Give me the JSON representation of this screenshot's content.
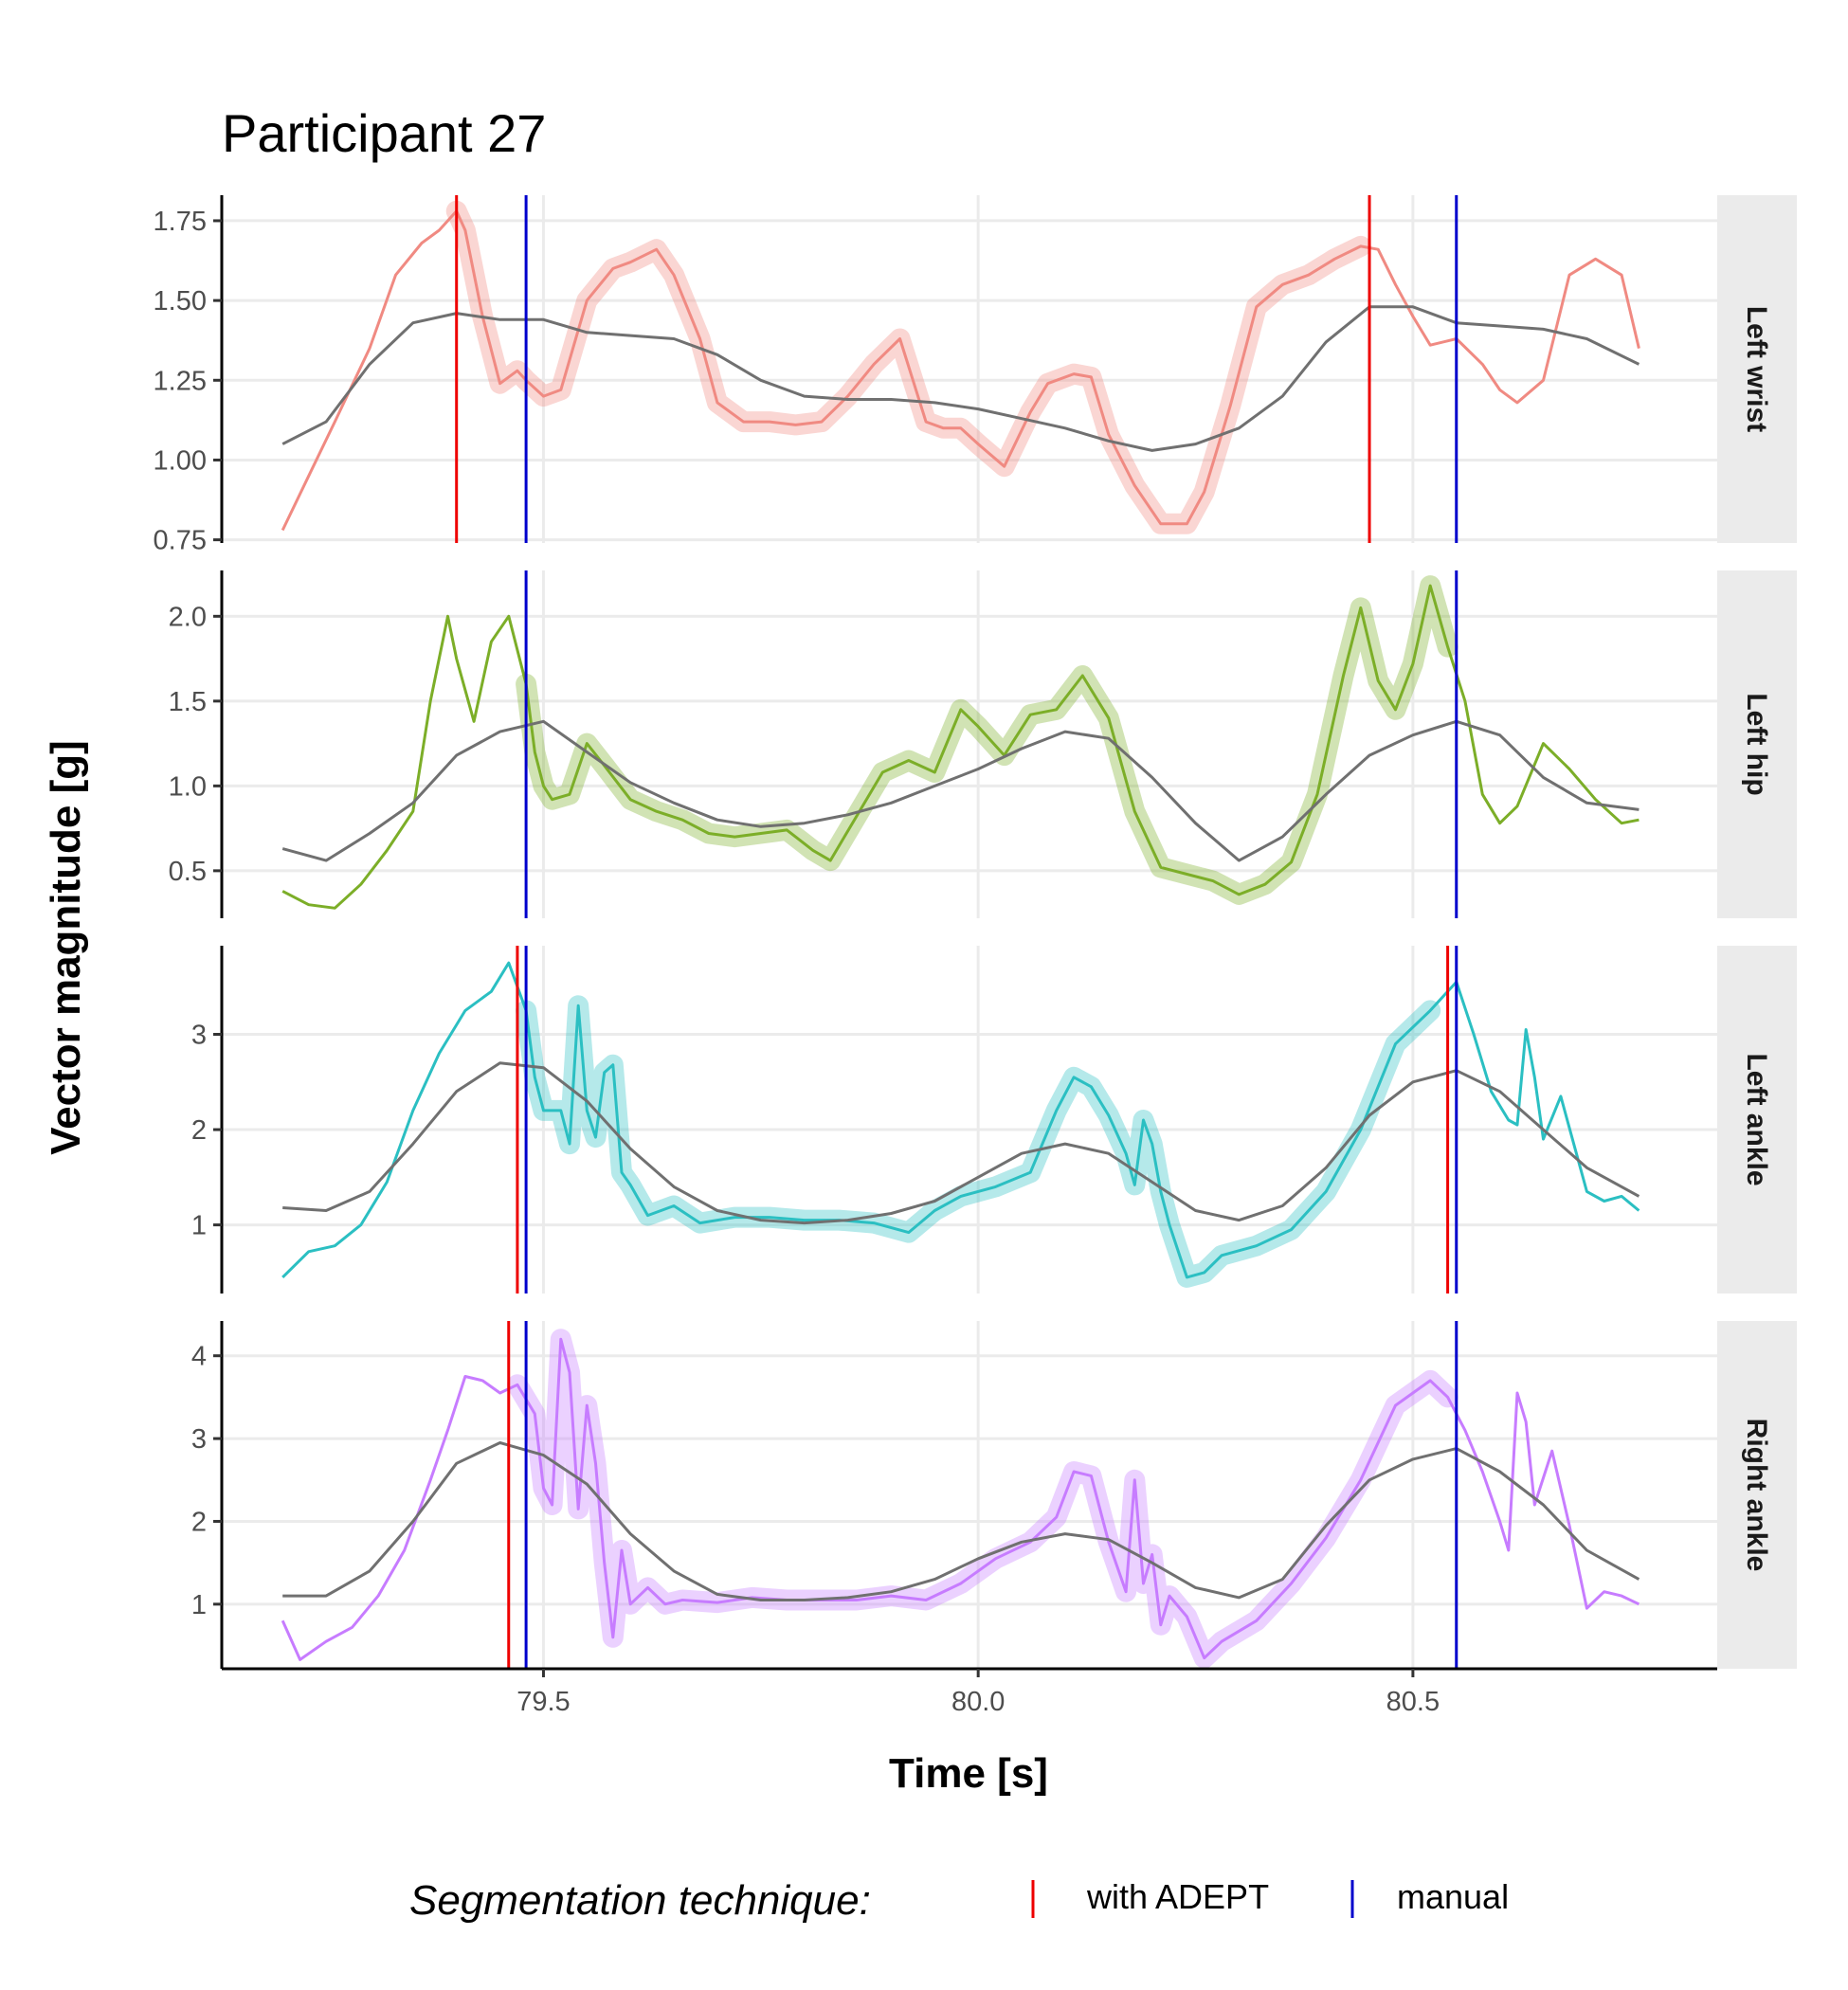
{
  "chart_data": {
    "type": "line",
    "title": "Participant 27",
    "xlabel": "Time [s]",
    "ylabel": "Vector magnitude [g]",
    "xlim": [
      79.13,
      80.85
    ],
    "x_ticks": [
      "79.5",
      "80.0",
      "80.5"
    ],
    "x_tick_values": [
      79.5,
      80.0,
      80.5
    ],
    "grid": true,
    "legend": {
      "title": "Segmentation technique:",
      "position": "bottom",
      "items": [
        {
          "label": "with ADEPT",
          "color": "#ee0000"
        },
        {
          "label": "manual",
          "color": "#0000cc"
        }
      ]
    },
    "panels": [
      {
        "label": "Left wrist",
        "color": "#f08a82",
        "ylim": [
          0.74,
          1.83
        ],
        "y_ticks": [
          "0.75",
          "1.00",
          "1.25",
          "1.50",
          "1.75"
        ],
        "y_tick_values": [
          0.75,
          1.0,
          1.25,
          1.5,
          1.75
        ],
        "signal_x": [
          79.2,
          79.23,
          79.26,
          79.3,
          79.33,
          79.36,
          79.38,
          79.4,
          79.41,
          79.43,
          79.45,
          79.47,
          79.48,
          79.5,
          79.52,
          79.55,
          79.58,
          79.6,
          79.63,
          79.65,
          79.68,
          79.7,
          79.73,
          79.76,
          79.79,
          79.82,
          79.85,
          79.88,
          79.91,
          79.94,
          79.96,
          79.98,
          80.0,
          80.03,
          80.06,
          80.08,
          80.11,
          80.13,
          80.15,
          80.18,
          80.21,
          80.24,
          80.26,
          80.29,
          80.32,
          80.35,
          80.38,
          80.41,
          80.44,
          80.46,
          80.48,
          80.5,
          80.52,
          80.55,
          80.58,
          80.6,
          80.62,
          80.65,
          80.68,
          80.71,
          80.74,
          80.76
        ],
        "signal_y": [
          0.78,
          0.95,
          1.12,
          1.35,
          1.58,
          1.68,
          1.72,
          1.78,
          1.72,
          1.45,
          1.24,
          1.28,
          1.25,
          1.2,
          1.22,
          1.5,
          1.6,
          1.62,
          1.66,
          1.58,
          1.38,
          1.18,
          1.12,
          1.12,
          1.11,
          1.12,
          1.2,
          1.3,
          1.38,
          1.12,
          1.1,
          1.1,
          1.05,
          0.98,
          1.15,
          1.24,
          1.27,
          1.26,
          1.08,
          0.92,
          0.8,
          0.8,
          0.9,
          1.17,
          1.48,
          1.55,
          1.58,
          1.63,
          1.67,
          1.66,
          1.55,
          1.45,
          1.36,
          1.38,
          1.3,
          1.22,
          1.18,
          1.25,
          1.58,
          1.63,
          1.58,
          1.35
        ],
        "smooth_x": [
          79.2,
          79.25,
          79.3,
          79.35,
          79.4,
          79.45,
          79.5,
          79.55,
          79.6,
          79.65,
          79.7,
          79.75,
          79.8,
          79.85,
          79.9,
          79.95,
          80.0,
          80.05,
          80.1,
          80.15,
          80.2,
          80.25,
          80.3,
          80.35,
          80.4,
          80.45,
          80.5,
          80.55,
          80.6,
          80.65,
          80.7,
          80.76
        ],
        "smooth_y": [
          1.05,
          1.12,
          1.3,
          1.43,
          1.46,
          1.44,
          1.44,
          1.4,
          1.39,
          1.38,
          1.33,
          1.25,
          1.2,
          1.19,
          1.19,
          1.18,
          1.16,
          1.13,
          1.1,
          1.06,
          1.03,
          1.05,
          1.1,
          1.2,
          1.37,
          1.48,
          1.48,
          1.43,
          1.42,
          1.41,
          1.38,
          1.3
        ],
        "adept_lines": [
          79.4,
          80.45
        ],
        "manual_lines": [
          79.48,
          80.55
        ]
      },
      {
        "label": "Left hip",
        "color": "#7cae28",
        "ylim": [
          0.22,
          2.27
        ],
        "y_ticks": [
          "0.5",
          "1.0",
          "1.5",
          "2.0"
        ],
        "y_tick_values": [
          0.5,
          1.0,
          1.5,
          2.0
        ],
        "signal_x": [
          79.2,
          79.23,
          79.26,
          79.29,
          79.32,
          79.35,
          79.37,
          79.39,
          79.4,
          79.42,
          79.44,
          79.46,
          79.48,
          79.49,
          79.5,
          79.51,
          79.53,
          79.55,
          79.57,
          79.6,
          79.63,
          79.66,
          79.69,
          79.72,
          79.75,
          79.78,
          79.81,
          79.83,
          79.86,
          79.89,
          79.92,
          79.95,
          79.98,
          80.0,
          80.03,
          80.06,
          80.09,
          80.12,
          80.15,
          80.18,
          80.21,
          80.24,
          80.27,
          80.3,
          80.33,
          80.36,
          80.39,
          80.42,
          80.44,
          80.46,
          80.48,
          80.5,
          80.52,
          80.54,
          80.56,
          80.58,
          80.6,
          80.62,
          80.65,
          80.68,
          80.71,
          80.74,
          80.76
        ],
        "signal_y": [
          0.38,
          0.3,
          0.28,
          0.42,
          0.62,
          0.85,
          1.5,
          2.0,
          1.75,
          1.38,
          1.85,
          2.0,
          1.6,
          1.2,
          1.0,
          0.92,
          0.95,
          1.25,
          1.12,
          0.92,
          0.85,
          0.8,
          0.72,
          0.7,
          0.72,
          0.74,
          0.62,
          0.56,
          0.82,
          1.08,
          1.15,
          1.08,
          1.45,
          1.35,
          1.18,
          1.42,
          1.45,
          1.65,
          1.4,
          0.85,
          0.52,
          0.48,
          0.44,
          0.36,
          0.42,
          0.55,
          0.95,
          1.65,
          2.05,
          1.62,
          1.45,
          1.72,
          2.18,
          1.82,
          1.5,
          0.95,
          0.78,
          0.88,
          1.25,
          1.1,
          0.92,
          0.78,
          0.8
        ],
        "smooth_x": [
          79.2,
          79.25,
          79.3,
          79.35,
          79.4,
          79.45,
          79.5,
          79.55,
          79.6,
          79.65,
          79.7,
          79.75,
          79.8,
          79.85,
          79.9,
          79.95,
          80.0,
          80.05,
          80.1,
          80.15,
          80.2,
          80.25,
          80.3,
          80.35,
          80.4,
          80.45,
          80.5,
          80.55,
          80.6,
          80.65,
          80.7,
          80.76
        ],
        "smooth_y": [
          0.63,
          0.56,
          0.72,
          0.9,
          1.18,
          1.32,
          1.38,
          1.2,
          1.02,
          0.9,
          0.8,
          0.76,
          0.78,
          0.83,
          0.9,
          1.0,
          1.1,
          1.22,
          1.32,
          1.28,
          1.05,
          0.78,
          0.56,
          0.7,
          0.95,
          1.18,
          1.3,
          1.38,
          1.3,
          1.05,
          0.9,
          0.86
        ],
        "adept_lines": [],
        "manual_lines": [
          79.48,
          80.55
        ]
      },
      {
        "label": "Left ankle",
        "color": "#2bbfc2",
        "ylim": [
          0.28,
          3.93
        ],
        "y_ticks": [
          "1",
          "2",
          "3"
        ],
        "y_tick_values": [
          1,
          2,
          3
        ],
        "signal_x": [
          79.2,
          79.23,
          79.26,
          79.29,
          79.32,
          79.35,
          79.38,
          79.41,
          79.44,
          79.46,
          79.48,
          79.49,
          79.5,
          79.52,
          79.53,
          79.54,
          79.55,
          79.56,
          79.57,
          79.58,
          79.59,
          79.6,
          79.62,
          79.65,
          79.68,
          79.72,
          79.76,
          79.8,
          79.84,
          79.88,
          79.92,
          79.95,
          79.98,
          80.02,
          80.06,
          80.09,
          80.11,
          80.13,
          80.15,
          80.17,
          80.18,
          80.19,
          80.2,
          80.21,
          80.22,
          80.24,
          80.26,
          80.28,
          80.32,
          80.36,
          80.4,
          80.44,
          80.48,
          80.52,
          80.55,
          80.57,
          80.59,
          80.61,
          80.62,
          80.63,
          80.64,
          80.65,
          80.67,
          80.7,
          80.72,
          80.74,
          80.76
        ],
        "signal_y": [
          0.45,
          0.72,
          0.78,
          1.0,
          1.45,
          2.2,
          2.8,
          3.25,
          3.45,
          3.75,
          3.25,
          2.55,
          2.2,
          2.2,
          1.85,
          3.3,
          2.2,
          1.92,
          2.6,
          2.68,
          1.55,
          1.42,
          1.1,
          1.2,
          1.02,
          1.08,
          1.08,
          1.05,
          1.05,
          1.02,
          0.92,
          1.15,
          1.3,
          1.4,
          1.55,
          2.2,
          2.55,
          2.45,
          2.15,
          1.75,
          1.42,
          2.1,
          1.85,
          1.35,
          1.0,
          0.45,
          0.5,
          0.68,
          0.78,
          0.95,
          1.35,
          2.0,
          2.9,
          3.25,
          3.55,
          3.0,
          2.4,
          2.1,
          2.05,
          3.05,
          2.55,
          1.9,
          2.35,
          1.35,
          1.25,
          1.3,
          1.15
        ],
        "smooth_x": [
          79.2,
          79.25,
          79.3,
          79.35,
          79.4,
          79.45,
          79.5,
          79.55,
          79.6,
          79.65,
          79.7,
          79.75,
          79.8,
          79.85,
          79.9,
          79.95,
          80.0,
          80.05,
          80.1,
          80.15,
          80.2,
          80.25,
          80.3,
          80.35,
          80.4,
          80.45,
          80.5,
          80.55,
          80.6,
          80.65,
          80.7,
          80.76
        ],
        "smooth_y": [
          1.18,
          1.15,
          1.35,
          1.85,
          2.4,
          2.7,
          2.65,
          2.3,
          1.8,
          1.4,
          1.15,
          1.05,
          1.02,
          1.05,
          1.12,
          1.25,
          1.5,
          1.75,
          1.85,
          1.75,
          1.45,
          1.15,
          1.05,
          1.2,
          1.6,
          2.15,
          2.5,
          2.62,
          2.4,
          2.0,
          1.6,
          1.3
        ],
        "adept_lines": [
          79.47,
          80.54
        ],
        "manual_lines": [
          79.48,
          80.55
        ]
      },
      {
        "label": "Right ankle",
        "color": "#c77cff",
        "ylim": [
          0.22,
          4.42
        ],
        "y_ticks": [
          "1",
          "2",
          "3",
          "4"
        ],
        "y_tick_values": [
          1,
          2,
          3,
          4
        ],
        "signal_x": [
          79.2,
          79.22,
          79.25,
          79.28,
          79.31,
          79.34,
          79.37,
          79.39,
          79.41,
          79.43,
          79.45,
          79.47,
          79.49,
          79.5,
          79.51,
          79.52,
          79.53,
          79.54,
          79.55,
          79.56,
          79.57,
          79.58,
          79.59,
          79.6,
          79.62,
          79.64,
          79.66,
          79.7,
          79.74,
          79.78,
          79.82,
          79.86,
          79.9,
          79.94,
          79.98,
          80.02,
          80.06,
          80.09,
          80.11,
          80.13,
          80.15,
          80.17,
          80.18,
          80.19,
          80.2,
          80.21,
          80.22,
          80.24,
          80.26,
          80.28,
          80.32,
          80.36,
          80.4,
          80.44,
          80.48,
          80.52,
          80.54,
          80.56,
          80.58,
          80.6,
          80.61,
          80.62,
          80.63,
          80.64,
          80.66,
          80.68,
          80.7,
          80.72,
          80.74,
          80.76
        ],
        "signal_y": [
          0.8,
          0.33,
          0.55,
          0.72,
          1.1,
          1.65,
          2.5,
          3.1,
          3.75,
          3.7,
          3.55,
          3.65,
          3.3,
          2.4,
          2.2,
          4.2,
          3.8,
          2.15,
          3.4,
          2.7,
          1.5,
          0.6,
          1.65,
          1.0,
          1.2,
          1.0,
          1.05,
          1.02,
          1.08,
          1.05,
          1.05,
          1.05,
          1.1,
          1.05,
          1.25,
          1.55,
          1.75,
          2.05,
          2.6,
          2.55,
          1.75,
          1.15,
          2.5,
          1.25,
          1.6,
          0.75,
          1.1,
          0.85,
          0.35,
          0.55,
          0.8,
          1.25,
          1.8,
          2.5,
          3.4,
          3.7,
          3.5,
          3.1,
          2.6,
          2.0,
          1.65,
          3.55,
          3.2,
          2.2,
          2.85,
          1.95,
          0.95,
          1.15,
          1.1,
          1.0
        ],
        "smooth_x": [
          79.2,
          79.25,
          79.3,
          79.35,
          79.4,
          79.45,
          79.5,
          79.55,
          79.6,
          79.65,
          79.7,
          79.75,
          79.8,
          79.85,
          79.9,
          79.95,
          80.0,
          80.05,
          80.1,
          80.15,
          80.2,
          80.25,
          80.3,
          80.35,
          80.4,
          80.45,
          80.5,
          80.55,
          80.6,
          80.65,
          80.7,
          80.76
        ],
        "smooth_y": [
          1.1,
          1.1,
          1.4,
          2.0,
          2.7,
          2.95,
          2.8,
          2.45,
          1.85,
          1.4,
          1.12,
          1.05,
          1.05,
          1.08,
          1.15,
          1.3,
          1.55,
          1.75,
          1.85,
          1.78,
          1.5,
          1.2,
          1.08,
          1.3,
          1.95,
          2.5,
          2.75,
          2.88,
          2.6,
          2.2,
          1.65,
          1.3
        ],
        "adept_lines": [
          79.46
        ],
        "manual_lines": [
          79.48,
          80.55
        ]
      }
    ]
  }
}
